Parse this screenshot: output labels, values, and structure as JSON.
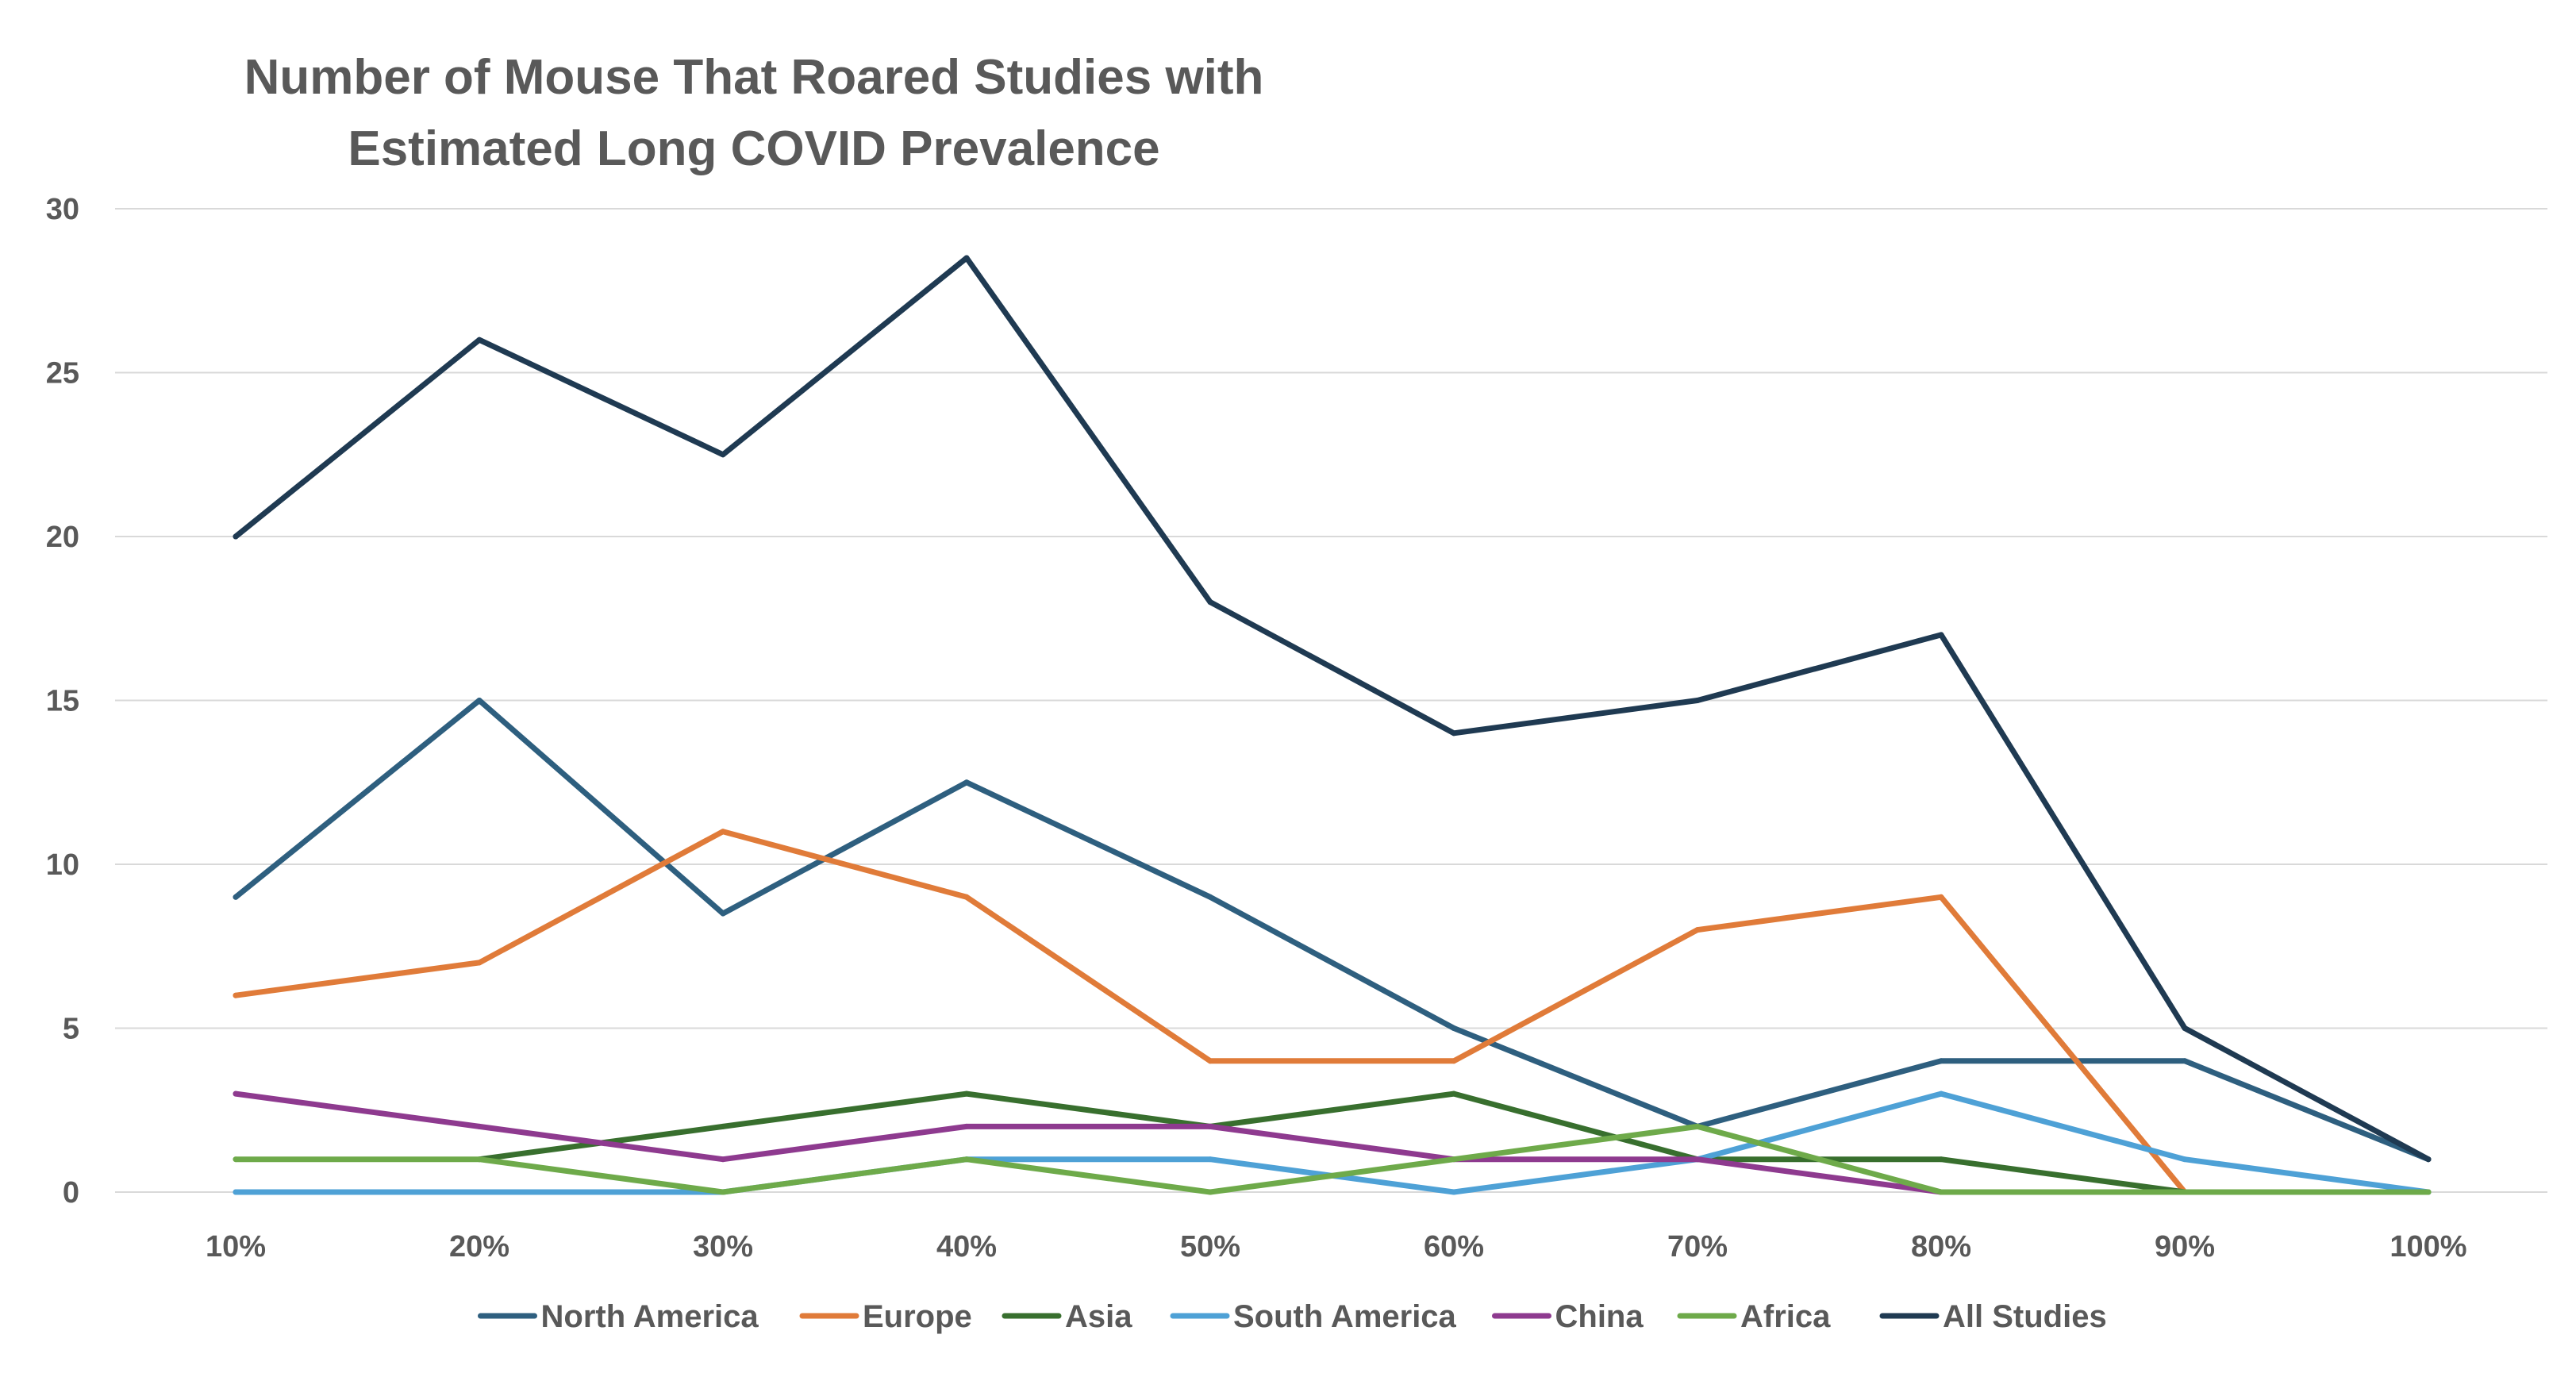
{
  "chart_data": {
    "type": "line",
    "title_lines": [
      "Number of Mouse That Roared Studies with",
      "Estimated Long COVID Prevalence"
    ],
    "xlabel": "",
    "ylabel": "",
    "categories": [
      "10%",
      "20%",
      "30%",
      "40%",
      "50%",
      "60%",
      "70%",
      "80%",
      "90%",
      "100%"
    ],
    "ylim": [
      0,
      30
    ],
    "yticks": [
      0,
      5,
      10,
      15,
      20,
      25,
      30
    ],
    "grid": true,
    "legend_position": "bottom",
    "series": [
      {
        "name": "North America",
        "color": "#2E5F7F",
        "values": [
          9,
          15,
          8.5,
          12.5,
          9,
          5,
          2,
          4,
          4,
          1
        ]
      },
      {
        "name": "Europe",
        "color": "#E07B39",
        "values": [
          6,
          7,
          11,
          9,
          4,
          4,
          8,
          9,
          0,
          null
        ]
      },
      {
        "name": "Asia",
        "color": "#386F2E",
        "values": [
          null,
          1,
          2,
          3,
          2,
          3,
          1,
          1,
          0,
          null
        ]
      },
      {
        "name": "South America",
        "color": "#4EA1D6",
        "values": [
          0,
          0,
          0,
          1,
          1,
          0,
          1,
          3,
          1,
          0
        ]
      },
      {
        "name": "China",
        "color": "#8E3A8F",
        "values": [
          3,
          2,
          1,
          2,
          2,
          1,
          1,
          0,
          null,
          null
        ]
      },
      {
        "name": "Africa",
        "color": "#6EAA4A",
        "values": [
          1,
          1,
          0,
          1,
          0,
          1,
          2,
          0,
          0,
          0
        ]
      },
      {
        "name": "All Studies",
        "color": "#1F3A52",
        "values": [
          20,
          26,
          22.5,
          28.5,
          18,
          14,
          15,
          17,
          5,
          1
        ]
      }
    ]
  }
}
